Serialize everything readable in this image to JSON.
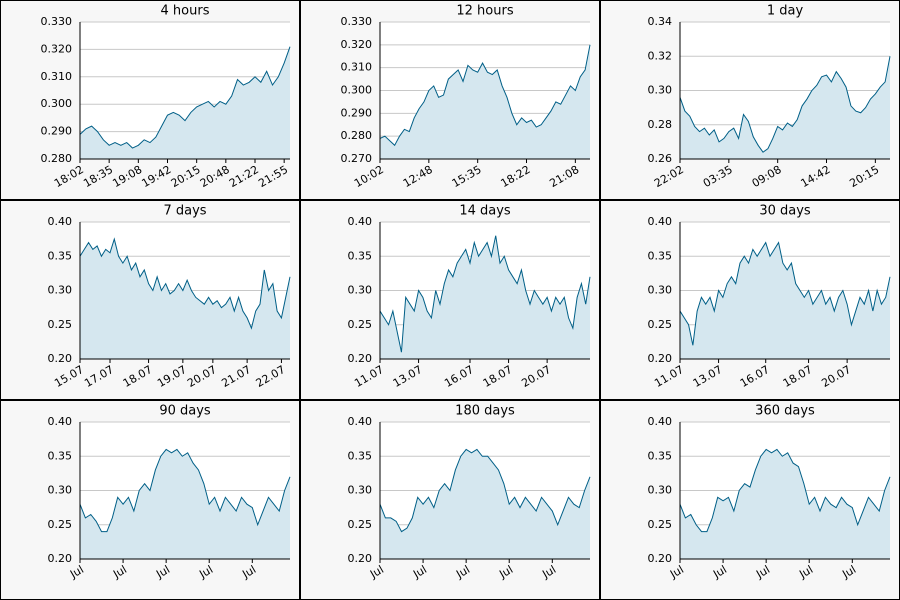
{
  "chart_data": [
    {
      "type": "area",
      "title": "4 hours",
      "color": "#005f87",
      "fill": "#d5e7ef",
      "grid": true,
      "values": [
        0.289,
        0.291,
        0.292,
        0.29,
        0.287,
        0.285,
        0.286,
        0.285,
        0.286,
        0.284,
        0.285,
        0.287,
        0.286,
        0.288,
        0.292,
        0.296,
        0.297,
        0.296,
        0.294,
        0.297,
        0.299,
        0.3,
        0.301,
        0.299,
        0.301,
        0.3,
        0.303,
        0.309,
        0.307,
        0.308,
        0.31,
        0.308,
        0.312,
        0.307,
        0.31,
        0.315,
        0.321
      ],
      "xlim": [
        0,
        36
      ],
      "xticks": [
        {
          "value": 0,
          "label": "18:02"
        },
        {
          "value": 5,
          "label": "18:35"
        },
        {
          "value": 10,
          "label": "19:08"
        },
        {
          "value": 15,
          "label": "19:42"
        },
        {
          "value": 20,
          "label": "20:15"
        },
        {
          "value": 25,
          "label": "20:48"
        },
        {
          "value": 30,
          "label": "21:22"
        },
        {
          "value": 35,
          "label": "21:55"
        }
      ],
      "ylim": [
        0.28,
        0.33
      ],
      "yticks": [
        {
          "value": 0.28,
          "label": "0.280"
        },
        {
          "value": 0.29,
          "label": "0.290"
        },
        {
          "value": 0.3,
          "label": "0.300"
        },
        {
          "value": 0.31,
          "label": "0.310"
        },
        {
          "value": 0.32,
          "label": "0.320"
        },
        {
          "value": 0.33,
          "label": "0.330"
        }
      ]
    },
    {
      "type": "area",
      "title": "12 hours",
      "color": "#005f87",
      "fill": "#d5e7ef",
      "grid": true,
      "values": [
        0.279,
        0.28,
        0.278,
        0.276,
        0.28,
        0.283,
        0.282,
        0.288,
        0.292,
        0.295,
        0.3,
        0.302,
        0.297,
        0.298,
        0.305,
        0.307,
        0.309,
        0.304,
        0.311,
        0.309,
        0.308,
        0.312,
        0.308,
        0.307,
        0.309,
        0.302,
        0.297,
        0.29,
        0.285,
        0.288,
        0.286,
        0.287,
        0.284,
        0.285,
        0.288,
        0.291,
        0.295,
        0.294,
        0.298,
        0.302,
        0.3,
        0.306,
        0.309,
        0.32
      ],
      "xlim": [
        0,
        43
      ],
      "xticks": [
        {
          "value": 0,
          "label": "10:02"
        },
        {
          "value": 10,
          "label": "12:48"
        },
        {
          "value": 20,
          "label": "15:35"
        },
        {
          "value": 30,
          "label": "18:22"
        },
        {
          "value": 40,
          "label": "21:08"
        }
      ],
      "ylim": [
        0.27,
        0.33
      ],
      "yticks": [
        {
          "value": 0.27,
          "label": "0.270"
        },
        {
          "value": 0.28,
          "label": "0.280"
        },
        {
          "value": 0.29,
          "label": "0.290"
        },
        {
          "value": 0.3,
          "label": "0.300"
        },
        {
          "value": 0.31,
          "label": "0.310"
        },
        {
          "value": 0.32,
          "label": "0.320"
        },
        {
          "value": 0.33,
          "label": "0.330"
        }
      ]
    },
    {
      "type": "area",
      "title": "1 day",
      "color": "#005f87",
      "fill": "#d5e7ef",
      "grid": true,
      "values": [
        0.296,
        0.288,
        0.285,
        0.279,
        0.276,
        0.278,
        0.274,
        0.277,
        0.27,
        0.272,
        0.276,
        0.278,
        0.272,
        0.286,
        0.282,
        0.273,
        0.268,
        0.264,
        0.266,
        0.272,
        0.279,
        0.277,
        0.281,
        0.279,
        0.283,
        0.291,
        0.295,
        0.3,
        0.303,
        0.308,
        0.309,
        0.305,
        0.311,
        0.307,
        0.302,
        0.291,
        0.288,
        0.287,
        0.29,
        0.295,
        0.298,
        0.302,
        0.305,
        0.32
      ],
      "xlim": [
        0,
        43
      ],
      "xticks": [
        {
          "value": 0,
          "label": "22:02"
        },
        {
          "value": 10,
          "label": "03:35"
        },
        {
          "value": 20,
          "label": "09:08"
        },
        {
          "value": 30,
          "label": "14:42"
        },
        {
          "value": 40,
          "label": "20:15"
        }
      ],
      "ylim": [
        0.26,
        0.34
      ],
      "yticks": [
        0.26,
        0.28,
        {
          "value": 0.3,
          "label": "0.30"
        },
        0.32,
        0.34
      ]
    },
    {
      "type": "area",
      "title": "7 days",
      "color": "#005f87",
      "fill": "#d5e7ef",
      "grid": true,
      "values": [
        0.35,
        0.36,
        0.37,
        0.36,
        0.365,
        0.35,
        0.36,
        0.355,
        0.375,
        0.35,
        0.34,
        0.35,
        0.33,
        0.34,
        0.32,
        0.33,
        0.31,
        0.3,
        0.32,
        0.3,
        0.31,
        0.295,
        0.3,
        0.31,
        0.3,
        0.315,
        0.3,
        0.29,
        0.285,
        0.28,
        0.29,
        0.28,
        0.285,
        0.275,
        0.28,
        0.29,
        0.27,
        0.29,
        0.27,
        0.26,
        0.245,
        0.27,
        0.28,
        0.33,
        0.3,
        0.31,
        0.27,
        0.26,
        0.29,
        0.32
      ],
      "xlim": [
        0,
        49
      ],
      "xticks": [
        {
          "value": 0,
          "label": "15.07"
        },
        {
          "value": 7,
          "label": "17.07"
        },
        {
          "value": 16,
          "label": "18.07"
        },
        {
          "value": 24,
          "label": "19.07"
        },
        {
          "value": 31,
          "label": "20.07"
        },
        {
          "value": 39,
          "label": "21.07"
        },
        {
          "value": 47,
          "label": "22.07"
        }
      ],
      "ylim": [
        0.2,
        0.4
      ],
      "yticks": [
        {
          "value": 0.2,
          "label": "0.20"
        },
        0.25,
        {
          "value": 0.3,
          "label": "0.30"
        },
        0.35,
        {
          "value": 0.4,
          "label": "0.40"
        }
      ]
    },
    {
      "type": "area",
      "title": "14 days",
      "color": "#005f87",
      "fill": "#d5e7ef",
      "grid": true,
      "values": [
        0.27,
        0.26,
        0.25,
        0.27,
        0.24,
        0.21,
        0.29,
        0.28,
        0.27,
        0.3,
        0.29,
        0.27,
        0.26,
        0.3,
        0.28,
        0.31,
        0.33,
        0.32,
        0.34,
        0.35,
        0.36,
        0.34,
        0.37,
        0.35,
        0.36,
        0.37,
        0.35,
        0.38,
        0.34,
        0.35,
        0.33,
        0.32,
        0.31,
        0.33,
        0.3,
        0.28,
        0.3,
        0.29,
        0.28,
        0.29,
        0.27,
        0.29,
        0.28,
        0.29,
        0.26,
        0.245,
        0.29,
        0.31,
        0.28,
        0.32
      ],
      "xlim": [
        0,
        49
      ],
      "xticks": [
        {
          "value": 0,
          "label": "11.07"
        },
        {
          "value": 9,
          "label": "13.07"
        },
        {
          "value": 21,
          "label": "16.07"
        },
        {
          "value": 30,
          "label": "18.07"
        },
        {
          "value": 39,
          "label": "20.07"
        }
      ],
      "ylim": [
        0.2,
        0.4
      ],
      "yticks": [
        {
          "value": 0.2,
          "label": "0.20"
        },
        0.25,
        {
          "value": 0.3,
          "label": "0.30"
        },
        0.35,
        {
          "value": 0.4,
          "label": "0.40"
        }
      ]
    },
    {
      "type": "area",
      "title": "30 days",
      "color": "#005f87",
      "fill": "#d5e7ef",
      "grid": true,
      "values": [
        0.27,
        0.26,
        0.25,
        0.22,
        0.27,
        0.29,
        0.28,
        0.29,
        0.27,
        0.3,
        0.29,
        0.31,
        0.32,
        0.31,
        0.34,
        0.35,
        0.34,
        0.36,
        0.35,
        0.36,
        0.37,
        0.35,
        0.36,
        0.37,
        0.34,
        0.33,
        0.34,
        0.31,
        0.3,
        0.29,
        0.3,
        0.28,
        0.29,
        0.3,
        0.28,
        0.29,
        0.27,
        0.29,
        0.3,
        0.28,
        0.25,
        0.27,
        0.29,
        0.28,
        0.3,
        0.27,
        0.3,
        0.28,
        0.29,
        0.32
      ],
      "xlim": [
        0,
        49
      ],
      "xticks": [
        {
          "value": 0,
          "label": "11.07"
        },
        {
          "value": 9,
          "label": "13.07"
        },
        {
          "value": 20,
          "label": "16.07"
        },
        {
          "value": 30,
          "label": "18.07"
        },
        {
          "value": 39,
          "label": "20.07"
        }
      ],
      "ylim": [
        0.2,
        0.4
      ],
      "yticks": [
        {
          "value": 0.2,
          "label": "0.20"
        },
        0.25,
        {
          "value": 0.3,
          "label": "0.30"
        },
        0.35,
        {
          "value": 0.4,
          "label": "0.40"
        }
      ]
    },
    {
      "type": "area",
      "title": "90 days",
      "color": "#005f87",
      "fill": "#d5e7ef",
      "grid": true,
      "values": [
        0.28,
        0.26,
        0.265,
        0.255,
        0.24,
        0.24,
        0.26,
        0.29,
        0.28,
        0.29,
        0.27,
        0.3,
        0.31,
        0.3,
        0.33,
        0.35,
        0.36,
        0.355,
        0.36,
        0.35,
        0.355,
        0.34,
        0.33,
        0.31,
        0.28,
        0.29,
        0.27,
        0.29,
        0.28,
        0.27,
        0.29,
        0.28,
        0.275,
        0.25,
        0.27,
        0.29,
        0.28,
        0.27,
        0.3,
        0.32
      ],
      "xlim": [
        0,
        39
      ],
      "xticks": [
        {
          "value": 0,
          "label": "Jul"
        },
        {
          "value": 8,
          "label": "Jul"
        },
        {
          "value": 16,
          "label": "Jul"
        },
        {
          "value": 24,
          "label": "Jul"
        },
        {
          "value": 32,
          "label": "Jul"
        }
      ],
      "ylim": [
        0.2,
        0.4
      ],
      "yticks": [
        {
          "value": 0.2,
          "label": "0.20"
        },
        0.25,
        {
          "value": 0.3,
          "label": "0.30"
        },
        0.35,
        {
          "value": 0.4,
          "label": "0.40"
        }
      ]
    },
    {
      "type": "area",
      "title": "180 days",
      "color": "#005f87",
      "fill": "#d5e7ef",
      "grid": true,
      "values": [
        0.28,
        0.26,
        0.26,
        0.255,
        0.24,
        0.245,
        0.26,
        0.29,
        0.28,
        0.29,
        0.275,
        0.3,
        0.31,
        0.3,
        0.33,
        0.35,
        0.36,
        0.355,
        0.36,
        0.35,
        0.35,
        0.34,
        0.33,
        0.31,
        0.28,
        0.29,
        0.275,
        0.29,
        0.28,
        0.27,
        0.29,
        0.28,
        0.27,
        0.25,
        0.27,
        0.29,
        0.28,
        0.275,
        0.3,
        0.32
      ],
      "xlim": [
        0,
        39
      ],
      "xticks": [
        {
          "value": 0,
          "label": "Jul"
        },
        {
          "value": 8,
          "label": "Jul"
        },
        {
          "value": 16,
          "label": "Jul"
        },
        {
          "value": 24,
          "label": "Jul"
        },
        {
          "value": 32,
          "label": "Jul"
        }
      ],
      "ylim": [
        0.2,
        0.4
      ],
      "yticks": [
        {
          "value": 0.2,
          "label": "0.20"
        },
        0.25,
        {
          "value": 0.3,
          "label": "0.30"
        },
        0.35,
        {
          "value": 0.4,
          "label": "0.40"
        }
      ]
    },
    {
      "type": "area",
      "title": "360 days",
      "color": "#005f87",
      "fill": "#d5e7ef",
      "grid": true,
      "values": [
        0.28,
        0.26,
        0.265,
        0.25,
        0.24,
        0.24,
        0.26,
        0.29,
        0.285,
        0.29,
        0.27,
        0.3,
        0.31,
        0.305,
        0.33,
        0.35,
        0.36,
        0.355,
        0.36,
        0.35,
        0.355,
        0.34,
        0.335,
        0.31,
        0.28,
        0.29,
        0.27,
        0.29,
        0.28,
        0.275,
        0.29,
        0.28,
        0.275,
        0.25,
        0.27,
        0.29,
        0.28,
        0.27,
        0.3,
        0.32
      ],
      "xlim": [
        0,
        39
      ],
      "xticks": [
        {
          "value": 0,
          "label": "Jul"
        },
        {
          "value": 8,
          "label": "Jul"
        },
        {
          "value": 16,
          "label": "Jul"
        },
        {
          "value": 24,
          "label": "Jul"
        },
        {
          "value": 32,
          "label": "Jul"
        }
      ],
      "ylim": [
        0.2,
        0.4
      ],
      "yticks": [
        {
          "value": 0.2,
          "label": "0.20"
        },
        0.25,
        {
          "value": 0.3,
          "label": "0.30"
        },
        0.35,
        {
          "value": 0.4,
          "label": "0.40"
        }
      ]
    }
  ]
}
